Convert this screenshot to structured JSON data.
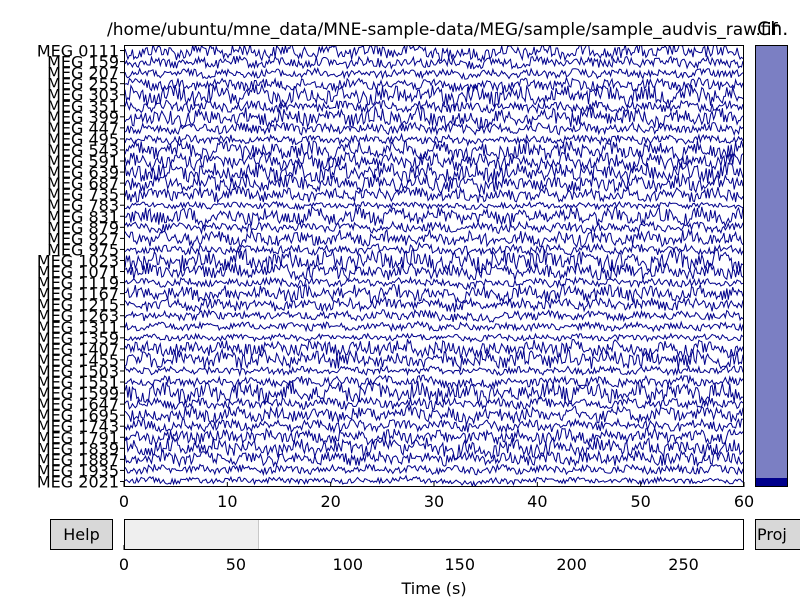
{
  "window": {
    "title": "/home/ubuntu/mne_data/MNE-sample-data/MEG/sample/sample_audvis_raw.fif",
    "channel_bar_label": "Ch.",
    "help_button": "Help",
    "proj_button": "Proj"
  },
  "colors": {
    "trace": "#00008b",
    "channel_scrollbar": "#7b7fc3",
    "channel_marker": "#00008b",
    "button_bg": "#d8d8d8",
    "time_window": "#efefef"
  },
  "channels": {
    "first": "MEG 0111",
    "last": "MEG 2021",
    "overlapping_label_text": "MEG"
  },
  "chart_data": [
    {
      "type": "line",
      "title": "/home/ubuntu/mne_data/MNE-sample-data/MEG/sample/sample_audvis_raw.fif",
      "xlim": [
        0,
        60
      ],
      "xticks": [
        "0",
        "10",
        "20",
        "30",
        "40",
        "50",
        "60"
      ],
      "xlabel": "",
      "ylabel": "",
      "ytick_first": "MEG 0111",
      "ytick_last": "MEG 2021",
      "n_channels_shown": 40,
      "grid": false,
      "legend": "none"
    },
    {
      "type": "bar",
      "title": "",
      "xlim": [
        0,
        277
      ],
      "xticks": [
        "0",
        "50",
        "100",
        "150",
        "200",
        "250"
      ],
      "xlabel": "Time (s)",
      "visible_window": [
        0,
        60
      ]
    }
  ]
}
